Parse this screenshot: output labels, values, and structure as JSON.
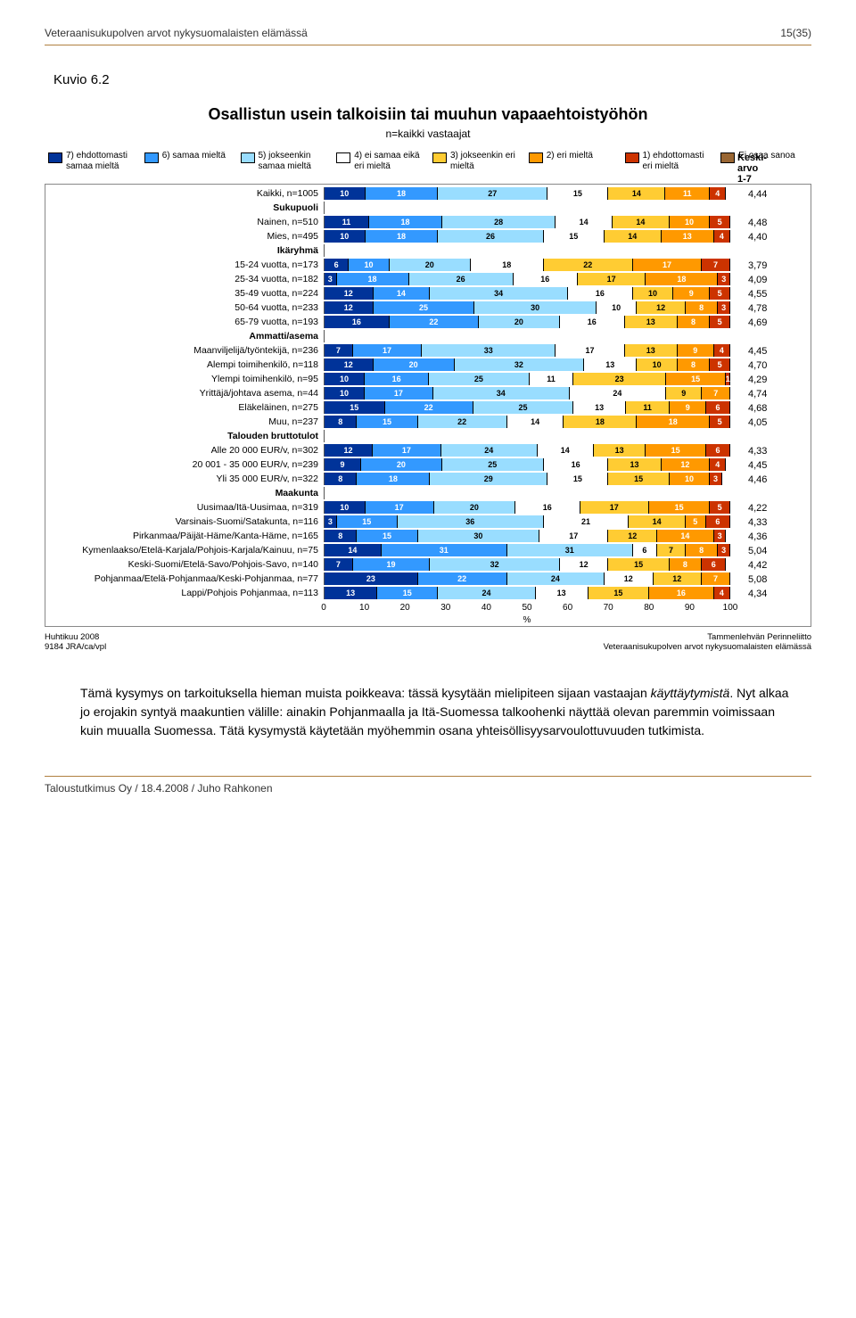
{
  "doc": {
    "header_left": "Veteraanisukupolven arvot nykysuomalaisten elämässä",
    "header_right": "15(35)",
    "footer": "Taloustutkimus Oy / 18.4.2008 / Juho Rahkonen",
    "kuvio": "Kuvio 6.2"
  },
  "chart": {
    "title": "Osallistun usein talkoisiin tai muuhun vapaaehtoistyöhön",
    "subtitle": "n=kaikki vastaajat",
    "keski_header": "Keski-\narvo\n1-7",
    "colors": {
      "c7": "#003399",
      "c6": "#3399ff",
      "c5": "#99ddff",
      "c4": "#ffffff",
      "c3": "#ffcc33",
      "c2": "#ff9900",
      "c1": "#cc3300",
      "c0": "#996633"
    },
    "legend": [
      {
        "key": "c7",
        "label": "7) ehdottomasti samaa mieltä"
      },
      {
        "key": "c6",
        "label": "6) samaa mieltä"
      },
      {
        "key": "c5",
        "label": "5) jokseenkin samaa mieltä"
      },
      {
        "key": "c4",
        "label": "4) ei samaa eikä eri mieltä"
      },
      {
        "key": "c3",
        "label": "3) jokseenkin eri mieltä"
      },
      {
        "key": "c2",
        "label": "2) eri mieltä"
      },
      {
        "key": "c1",
        "label": "1) ehdottomasti eri mieltä"
      },
      {
        "key": "c0",
        "label": "Ei osaa sanoa"
      }
    ],
    "rows": [
      {
        "label": "Kaikki, n=1005",
        "segs": [
          10,
          18,
          27,
          15,
          14,
          11,
          4
        ],
        "avg": "4,44"
      },
      {
        "label": "Sukupuoli",
        "section": true
      },
      {
        "label": "Nainen, n=510",
        "segs": [
          11,
          18,
          28,
          14,
          14,
          10,
          5
        ],
        "avg": "4,48"
      },
      {
        "label": "Mies, n=495",
        "segs": [
          10,
          18,
          26,
          15,
          14,
          13,
          4
        ],
        "avg": "4,40"
      },
      {
        "label": "Ikäryhmä",
        "section": true
      },
      {
        "label": "15-24 vuotta, n=173",
        "segs": [
          6,
          10,
          20,
          18,
          22,
          17,
          7
        ],
        "avg": "3,79"
      },
      {
        "label": "25-34 vuotta, n=182",
        "segs": [
          3,
          18,
          26,
          16,
          17,
          18,
          3
        ],
        "avg": "4,09"
      },
      {
        "label": "35-49 vuotta, n=224",
        "segs": [
          12,
          14,
          34,
          16,
          10,
          9,
          5
        ],
        "avg": "4,55"
      },
      {
        "label": "50-64 vuotta, n=233",
        "segs": [
          12,
          25,
          30,
          10,
          12,
          8,
          3
        ],
        "avg": "4,78"
      },
      {
        "label": "65-79 vuotta, n=193",
        "segs": [
          16,
          22,
          20,
          16,
          13,
          8,
          5
        ],
        "avg": "4,69"
      },
      {
        "label": "Ammatti/asema",
        "section": true
      },
      {
        "label": "Maanviljelijä/työntekijä, n=236",
        "segs": [
          7,
          17,
          33,
          17,
          13,
          9,
          4
        ],
        "avg": "4,45"
      },
      {
        "label": "Alempi toimihenkilö, n=118",
        "segs": [
          12,
          20,
          32,
          13,
          10,
          8,
          5
        ],
        "avg": "4,70"
      },
      {
        "label": "Ylempi toimihenkilö, n=95",
        "segs": [
          10,
          16,
          25,
          11,
          23,
          15,
          1
        ],
        "avg": "4,29"
      },
      {
        "label": "Yrittäjä/johtava asema, n=44",
        "segs": [
          10,
          17,
          34,
          24,
          9,
          7,
          0
        ],
        "avg": "4,74"
      },
      {
        "label": "Eläkeläinen, n=275",
        "segs": [
          15,
          22,
          25,
          13,
          11,
          9,
          6
        ],
        "avg": "4,68"
      },
      {
        "label": "Muu, n=237",
        "segs": [
          8,
          15,
          22,
          14,
          18,
          18,
          5
        ],
        "avg": "4,05"
      },
      {
        "label": "Talouden bruttotulot",
        "section": true
      },
      {
        "label": "Alle 20 000 EUR/v, n=302",
        "segs": [
          12,
          17,
          24,
          14,
          13,
          15,
          6
        ],
        "avg": "4,33"
      },
      {
        "label": "20 001 - 35 000 EUR/v, n=239",
        "segs": [
          9,
          20,
          25,
          16,
          13,
          12,
          4
        ],
        "avg": "4,45"
      },
      {
        "label": "Yli 35 000 EUR/v, n=322",
        "segs": [
          8,
          18,
          29,
          15,
          15,
          10,
          3
        ],
        "avg": "4,46"
      },
      {
        "label": "Maakunta",
        "section": true
      },
      {
        "label": "Uusimaa/Itä-Uusimaa, n=319",
        "segs": [
          10,
          17,
          20,
          16,
          17,
          15,
          5
        ],
        "avg": "4,22"
      },
      {
        "label": "Varsinais-Suomi/Satakunta, n=116",
        "segs": [
          3,
          15,
          36,
          21,
          14,
          5,
          6
        ],
        "avg": "4,33"
      },
      {
        "label": "Pirkanmaa/Päijät-Häme/Kanta-Häme, n=165",
        "segs": [
          8,
          15,
          30,
          17,
          12,
          14,
          3
        ],
        "avg": "4,36"
      },
      {
        "label": "Kymenlaakso/Etelä-Karjala/Pohjois-Karjala/Kainuu, n=75",
        "segs": [
          14,
          31,
          31,
          6,
          7,
          8,
          3
        ],
        "avg": "5,04"
      },
      {
        "label": "Keski-Suomi/Etelä-Savo/Pohjois-Savo, n=140",
        "segs": [
          7,
          19,
          32,
          12,
          15,
          8,
          6
        ],
        "avg": "4,42"
      },
      {
        "label": "Pohjanmaa/Etelä-Pohjanmaa/Keski-Pohjanmaa, n=77",
        "segs": [
          23,
          22,
          24,
          12,
          12,
          7,
          0
        ],
        "avg": "5,08"
      },
      {
        "label": "Lappi/Pohjois Pohjanmaa, n=113",
        "segs": [
          13,
          15,
          24,
          13,
          15,
          16,
          4
        ],
        "avg": "4,34"
      }
    ],
    "axis": [
      0,
      10,
      20,
      30,
      40,
      50,
      60,
      70,
      80,
      90,
      100
    ],
    "axis_label": "%",
    "footer_left1": "Huhtikuu 2008",
    "footer_left2": "9184 JRA/ca/vpl",
    "footer_right1": "Tammenlehvän Perinneliitto",
    "footer_right2": "Veteraanisukupolven arvot nykysuomalaisten elämässä"
  },
  "body_para": "Tämä kysymys on tarkoituksella hieman muista poikkeava: tässä kysytään mielipiteen sijaan vastaajan käyttäytymistä. Nyt alkaa jo erojakin syntyä maakuntien välille: ainakin Pohjanmaalla ja Itä-Suomessa talkoohenki näyttää olevan paremmin voimissaan kuin muualla Suomessa. Tätä kysymystä käytetään myöhemmin osana yhteisöllisyysarvoulottuvuuden tutkimista."
}
